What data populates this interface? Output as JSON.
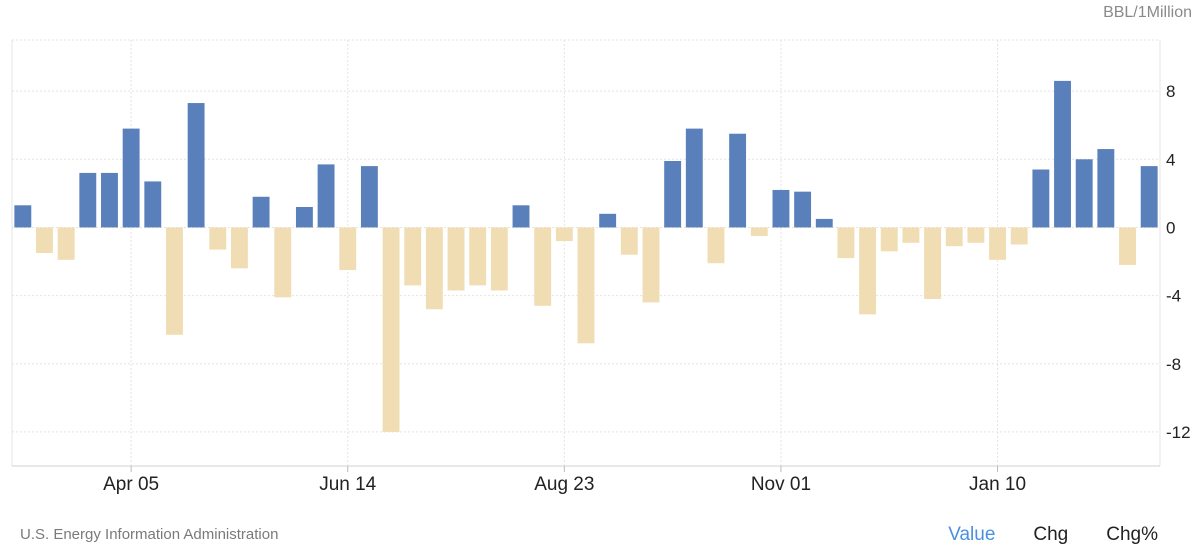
{
  "unit_label": "BBL/1Million",
  "source": "U.S. Energy Information Administration",
  "modes": [
    {
      "label": "Value",
      "active": true
    },
    {
      "label": "Chg",
      "active": false
    },
    {
      "label": "Chg%",
      "active": false
    }
  ],
  "colors": {
    "positive": "#5a80bb",
    "negative": "#f0ddb4",
    "grid": "#e4e4e4",
    "axis_text": "#222222"
  },
  "chart_data": {
    "type": "bar",
    "ylim": [
      -14,
      11
    ],
    "yticks": [
      8,
      4,
      0,
      -4,
      -8,
      -12
    ],
    "grid": true,
    "xtick_labels": [
      {
        "label": "Apr 05",
        "index": 5
      },
      {
        "label": "Jun 14",
        "index": 15
      },
      {
        "label": "Aug 23",
        "index": 25
      },
      {
        "label": "Nov 01",
        "index": 35
      },
      {
        "label": "Jan 10",
        "index": 45
      }
    ],
    "values": [
      1.3,
      -1.5,
      -1.9,
      3.2,
      3.2,
      5.8,
      2.7,
      -6.3,
      7.3,
      -1.3,
      -2.4,
      1.8,
      -4.1,
      1.2,
      3.7,
      -2.5,
      3.6,
      -12.0,
      -3.4,
      -4.8,
      -3.7,
      -3.4,
      -3.7,
      1.3,
      -4.6,
      -0.8,
      -6.8,
      0.8,
      -1.6,
      -4.4,
      3.9,
      5.8,
      -2.1,
      5.5,
      -0.5,
      2.2,
      2.1,
      0.5,
      -1.8,
      -5.1,
      -1.4,
      -0.9,
      -4.2,
      -1.1,
      -0.9,
      -1.9,
      -1.0,
      3.4,
      8.6,
      4.0,
      4.6,
      -2.2,
      3.6
    ]
  }
}
